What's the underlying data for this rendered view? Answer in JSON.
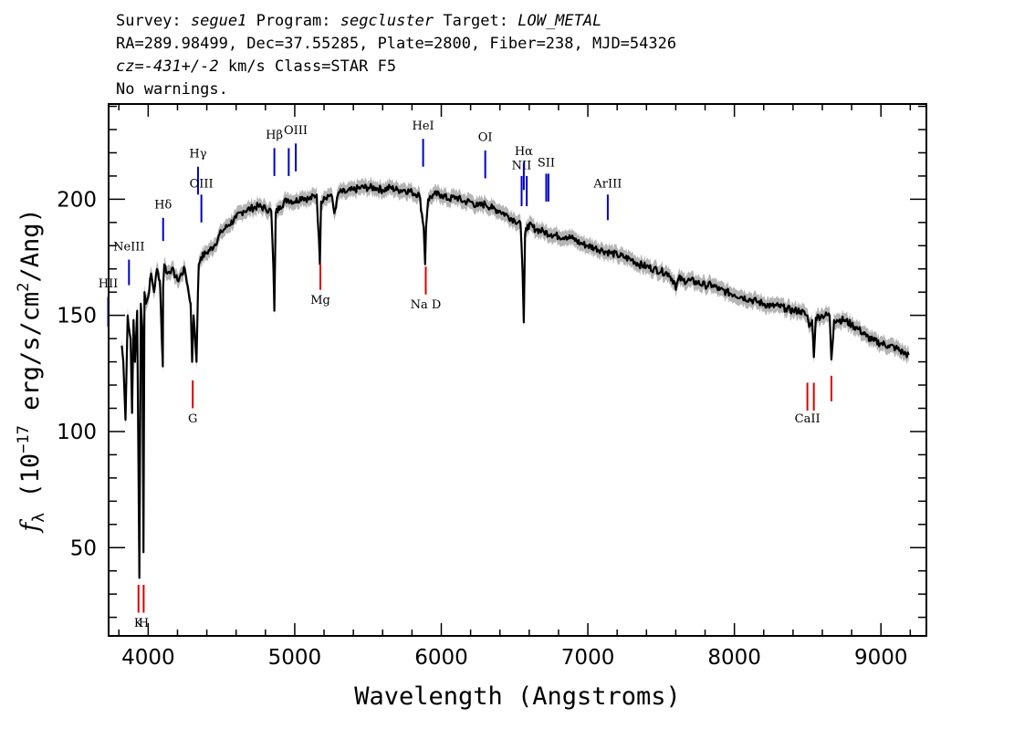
{
  "header": {
    "survey_label": "Survey:",
    "survey_value": "segue1",
    "program_label": "Program:",
    "program_value": "segcluster",
    "target_label": "Target:",
    "target_value": "LOW_METAL",
    "line2": "RA=289.98499, Dec=37.55285, Plate=2800, Fiber=238, MJD=54326",
    "cz_label": "cz=",
    "cz_value": "-431+/-2",
    "cz_rest": " km/s Class=STAR F5",
    "line4": "No warnings."
  },
  "colors": {
    "spectrum": "#000000",
    "error_band": "#b4b4b4",
    "emission_lines": "#0000cc",
    "absorption_lines": "#dd0000"
  },
  "chart_data": {
    "type": "line",
    "xlabel": "Wavelength (Angstroms)",
    "ylabel": "f_λ (10^-17 erg/s/cm^2/Ang)",
    "ylabel_parts": {
      "f": "f",
      "sub": "λ",
      "a": " (10",
      "exp1": "−17",
      "b": " erg/s/cm",
      "exp2": "2",
      "c": "/Ang)"
    },
    "xlim": [
      3730,
      9310
    ],
    "ylim": [
      12,
      241
    ],
    "xticks": [
      4000,
      5000,
      6000,
      7000,
      8000,
      9000
    ],
    "yticks": [
      50,
      100,
      150,
      200
    ],
    "x_minor_step": 200,
    "y_minor_step": 10,
    "series": [
      {
        "style": "line",
        "x": [
          3820,
          3830,
          3845,
          3860,
          3880,
          3890,
          3900,
          3910,
          3925,
          3933,
          3940,
          3950,
          3960,
          3968,
          3975,
          3985,
          4000,
          4020,
          4040,
          4060,
          4080,
          4100,
          4102,
          4110,
          4130,
          4160,
          4200,
          4250,
          4290,
          4300,
          4310,
          4330,
          4340,
          4345,
          4360,
          4400,
          4450,
          4500,
          4550,
          4600,
          4650,
          4700,
          4750,
          4800,
          4840,
          4855,
          4861,
          4870,
          4900,
          4950,
          5000,
          5050,
          5100,
          5150,
          5172,
          5180,
          5200,
          5250,
          5270,
          5300,
          5350,
          5400,
          5450,
          5500,
          5550,
          5600,
          5650,
          5700,
          5750,
          5800,
          5850,
          5880,
          5890,
          5896,
          5910,
          5950,
          6000,
          6050,
          6100,
          6150,
          6200,
          6250,
          6300,
          6350,
          6400,
          6450,
          6500,
          6540,
          6555,
          6563,
          6572,
          6590,
          6650,
          6700,
          6750,
          6800,
          6850,
          6900,
          6950,
          7000,
          7050,
          7100,
          7150,
          7200,
          7250,
          7300,
          7350,
          7400,
          7450,
          7500,
          7550,
          7594,
          7600,
          7620,
          7650,
          7700,
          7750,
          7800,
          7850,
          7900,
          7950,
          8000,
          8050,
          8100,
          8150,
          8200,
          8250,
          8300,
          8350,
          8400,
          8450,
          8490,
          8498,
          8510,
          8530,
          8542,
          8555,
          8600,
          8650,
          8662,
          8680,
          8700,
          8750,
          8800,
          8850,
          8900,
          8950,
          9000,
          9050,
          9100,
          9150,
          9190
        ],
        "y": [
          137,
          130,
          105,
          150,
          140,
          108,
          148,
          130,
          152,
          90,
          37,
          155,
          145,
          48,
          160,
          155,
          158,
          168,
          160,
          170,
          165,
          128,
          162,
          172,
          168,
          170,
          165,
          170,
          155,
          130,
          150,
          130,
          160,
          172,
          175,
          177,
          180,
          186,
          189,
          192,
          195,
          196,
          197,
          196,
          195,
          170,
          152,
          194,
          197,
          200,
          199,
          201,
          200,
          202,
          172,
          199,
          201,
          202,
          194,
          203,
          203,
          204,
          205,
          205,
          205,
          204,
          205,
          204,
          204,
          203,
          202,
          188,
          172,
          188,
          200,
          202,
          202,
          200,
          201,
          199,
          199,
          197,
          198,
          196,
          195,
          193,
          191,
          190,
          168,
          147,
          185,
          189,
          187,
          186,
          185,
          184,
          184,
          183,
          181,
          180,
          179,
          178,
          177,
          176,
          175,
          174,
          172,
          171,
          170,
          169,
          168,
          164,
          161,
          166,
          165,
          165,
          164,
          163,
          163,
          161,
          160,
          159,
          158,
          157,
          156,
          155,
          154,
          154,
          153,
          152,
          152,
          150,
          150,
          145,
          148,
          132,
          149,
          150,
          150,
          131,
          148,
          148,
          148,
          146,
          144,
          141,
          139,
          138,
          137,
          136,
          134,
          133
        ]
      }
    ],
    "emission_lines": [
      {
        "label": "HII",
        "x": 3727,
        "y0": 145,
        "y1": 158,
        "ly": 162
      },
      {
        "label": "NeIII",
        "x": 3869,
        "y0": 163,
        "y1": 174,
        "ly": 178
      },
      {
        "label": "Hδ",
        "x": 4102,
        "y0": 182,
        "y1": 192,
        "ly": 196
      },
      {
        "label": "Hγ",
        "x": 4340,
        "y0": 202,
        "y1": 214,
        "ly": 218
      },
      {
        "label": "OIII",
        "x": 4363,
        "y0": 190,
        "y1": 202,
        "ly": 205
      },
      {
        "label": "Hβ",
        "x": 4861,
        "y0": 210,
        "y1": 222,
        "ly": 226
      },
      {
        "label": "OIII",
        "x": 4959,
        "y0": 210,
        "y1": 222,
        "ly": 0
      },
      {
        "label": "OIII",
        "x": 5007,
        "y0": 212,
        "y1": 224,
        "ly": 228
      },
      {
        "label": "HeI",
        "x": 5876,
        "y0": 214,
        "y1": 226,
        "ly": 230
      },
      {
        "label": "OI",
        "x": 6300,
        "y0": 209,
        "y1": 221,
        "ly": 225
      },
      {
        "label": "NII",
        "x": 6548,
        "y0": 197,
        "y1": 210,
        "ly": 213
      },
      {
        "label": "Hα",
        "x": 6563,
        "y0": 204,
        "y1": 216,
        "ly": 219
      },
      {
        "label": "NII",
        "x": 6583,
        "y0": 197,
        "y1": 210,
        "ly": 0
      },
      {
        "label": "SII",
        "x": 6716,
        "y0": 199,
        "y1": 211,
        "ly": 214
      },
      {
        "label": "SII",
        "x": 6731,
        "y0": 199,
        "y1": 211,
        "ly": 0
      },
      {
        "label": "ArIII",
        "x": 7136,
        "y0": 191,
        "y1": 202,
        "ly": 205
      }
    ],
    "absorption_lines": [
      {
        "label": "K",
        "x": 3934,
        "y0": 22,
        "y1": 34,
        "ly": 16
      },
      {
        "label": "H",
        "x": 3969,
        "y0": 22,
        "y1": 34,
        "ly": 16
      },
      {
        "label": "G",
        "x": 4304,
        "y0": 110,
        "y1": 122,
        "ly": 104
      },
      {
        "label": "Mg",
        "x": 5175,
        "y0": 161,
        "y1": 172,
        "ly": 155
      },
      {
        "label": "Na D",
        "x": 5894,
        "y0": 159,
        "y1": 171,
        "ly": 153
      },
      {
        "label": "CaII",
        "x": 8498,
        "y0": 109,
        "y1": 121,
        "ly": 104
      },
      {
        "label": "CaII",
        "x": 8542,
        "y0": 109,
        "y1": 121,
        "ly": 0
      },
      {
        "label": "CaII",
        "x": 8662,
        "y0": 113,
        "y1": 124,
        "ly": 0
      }
    ]
  }
}
